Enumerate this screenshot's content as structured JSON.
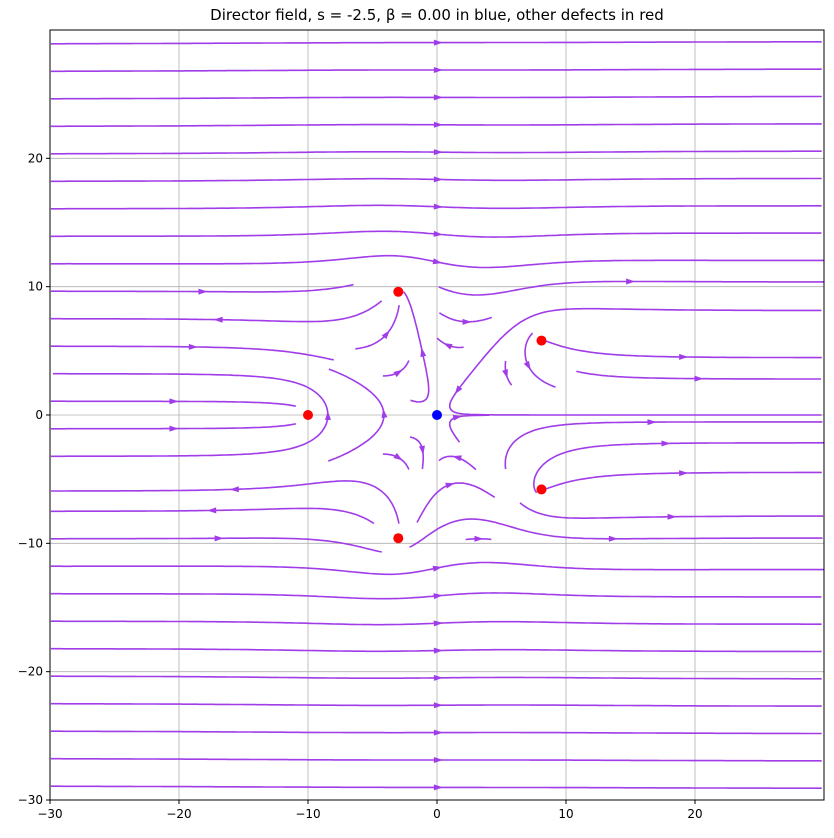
{
  "chart_data": {
    "type": "streamplot",
    "title": "Director field, s = -2.5, β = 0.00 in blue, other defects in red",
    "xlabel": "",
    "ylabel": "",
    "xlim": [
      -30,
      30
    ],
    "ylim": [
      -30,
      30
    ],
    "x_ticks": [
      -30,
      -20,
      -10,
      0,
      10,
      20
    ],
    "y_ticks": [
      -30,
      -20,
      -10,
      0,
      10,
      20
    ],
    "x_tick_labels": [
      "−30",
      "−20",
      "−10",
      "0",
      "10",
      "20"
    ],
    "y_tick_labels": [
      "−30",
      "−20",
      "−10",
      "0",
      "10",
      "20"
    ],
    "grid": true,
    "stream_color": "#a03ce8",
    "main_defect": {
      "x": 0,
      "y": 0,
      "color": "#0000ff"
    },
    "other_defects": {
      "color": "#ff0000",
      "points": [
        {
          "x": -10,
          "y": 0
        },
        {
          "x": -3,
          "y": 9.6
        },
        {
          "x": -3,
          "y": -9.6
        },
        {
          "x": 8.1,
          "y": 5.8
        },
        {
          "x": 8.1,
          "y": -5.8
        }
      ]
    }
  }
}
